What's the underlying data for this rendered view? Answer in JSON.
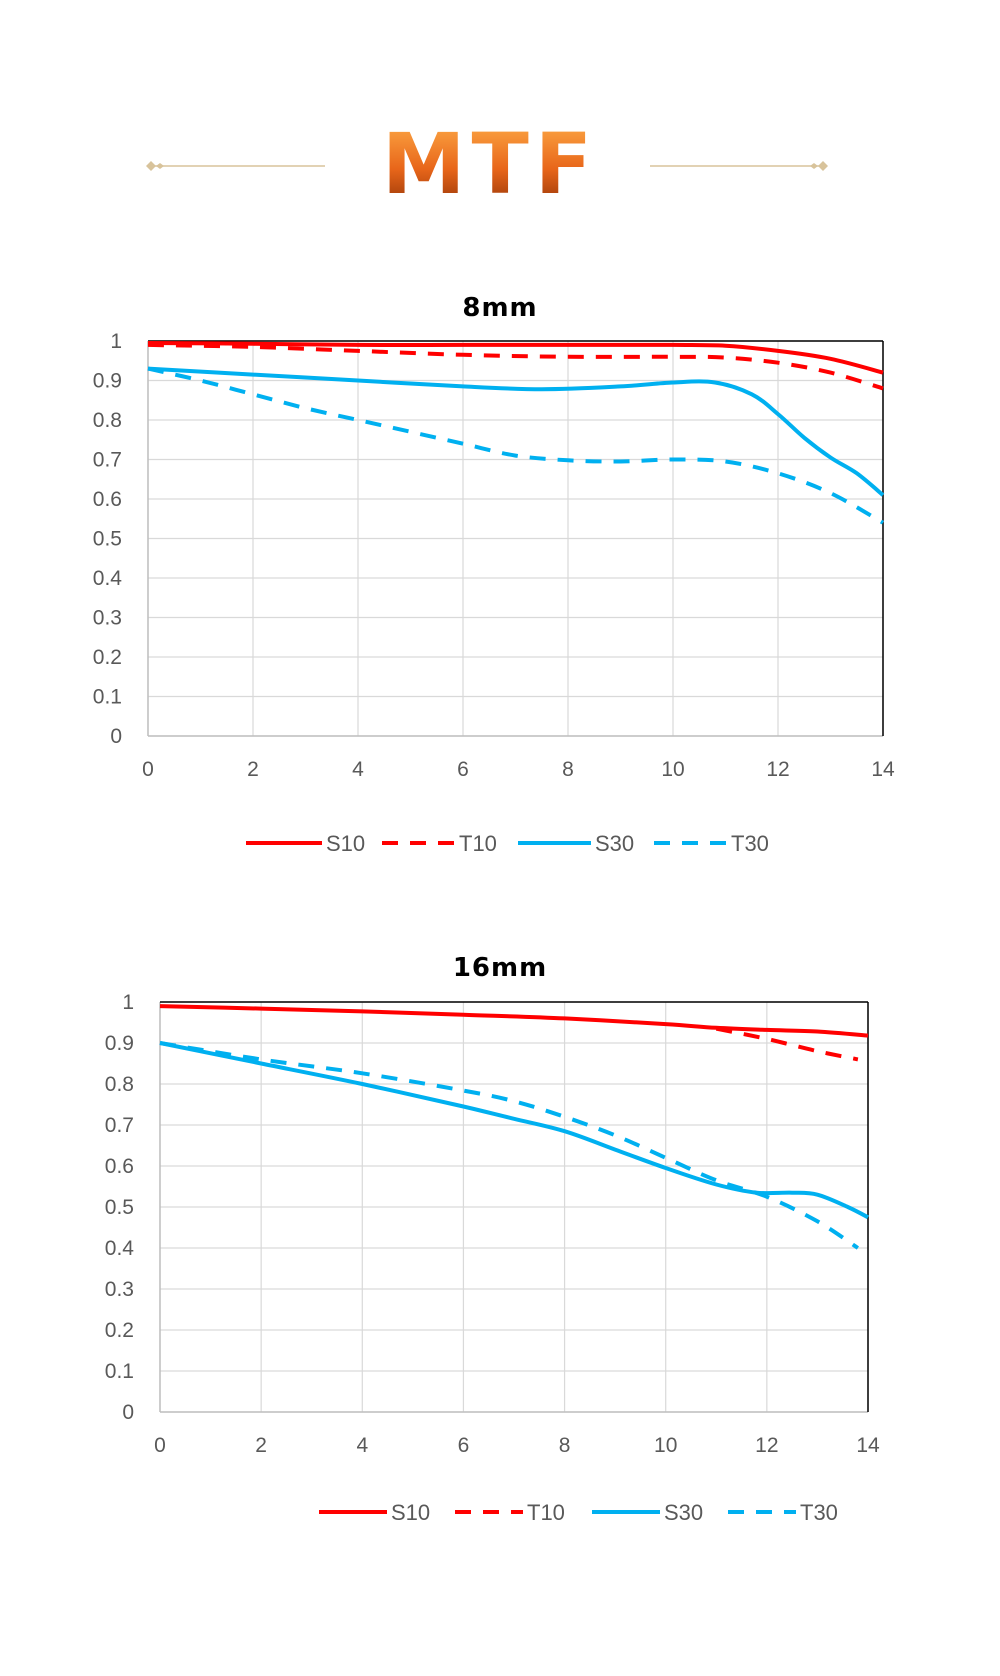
{
  "header": {
    "title": "MTF",
    "title_colors": [
      "#ffb04a",
      "#e8661a",
      "#8a2e04"
    ],
    "ornament_color": "#d8c39b"
  },
  "chart_data": [
    {
      "type": "line",
      "title": "8mm",
      "xlabel": "",
      "ylabel": "",
      "xlim": [
        0,
        14
      ],
      "ylim": [
        0,
        1
      ],
      "x_ticks": [
        "0",
        "2",
        "4",
        "6",
        "8",
        "10",
        "12",
        "14"
      ],
      "y_ticks": [
        "0",
        "0.1",
        "0.2",
        "0.3",
        "0.4",
        "0.5",
        "0.6",
        "0.7",
        "0.8",
        "0.9",
        "1"
      ],
      "grid": true,
      "legend": "bottom",
      "series": [
        {
          "name": "S10",
          "color": "#ff0000",
          "style": "solid",
          "points": [
            [
              0,
              0.995
            ],
            [
              2,
              0.993
            ],
            [
              4,
              0.99
            ],
            [
              6,
              0.99
            ],
            [
              8,
              0.99
            ],
            [
              10,
              0.99
            ],
            [
              11,
              0.988
            ],
            [
              12,
              0.975
            ],
            [
              13,
              0.955
            ],
            [
              14,
              0.92
            ]
          ]
        },
        {
          "name": "T10",
          "color": "#ff0000",
          "style": "dashed",
          "points": [
            [
              0,
              0.99
            ],
            [
              2,
              0.985
            ],
            [
              4,
              0.975
            ],
            [
              6,
              0.965
            ],
            [
              8,
              0.96
            ],
            [
              10,
              0.96
            ],
            [
              11,
              0.958
            ],
            [
              12,
              0.945
            ],
            [
              13,
              0.92
            ],
            [
              14,
              0.88
            ]
          ]
        },
        {
          "name": "S30",
          "color": "#00b0f0",
          "style": "solid",
          "points": [
            [
              0,
              0.93
            ],
            [
              2,
              0.915
            ],
            [
              4,
              0.9
            ],
            [
              6,
              0.885
            ],
            [
              7.5,
              0.878
            ],
            [
              9,
              0.885
            ],
            [
              10,
              0.895
            ],
            [
              10.8,
              0.895
            ],
            [
              11.5,
              0.865
            ],
            [
              12,
              0.815
            ],
            [
              12.5,
              0.755
            ],
            [
              13,
              0.705
            ],
            [
              13.5,
              0.665
            ],
            [
              14,
              0.61
            ]
          ]
        },
        {
          "name": "T30",
          "color": "#00b0f0",
          "style": "dashed",
          "points": [
            [
              0,
              0.93
            ],
            [
              1,
              0.9
            ],
            [
              2,
              0.865
            ],
            [
              3,
              0.83
            ],
            [
              4,
              0.8
            ],
            [
              5,
              0.77
            ],
            [
              6,
              0.74
            ],
            [
              7,
              0.71
            ],
            [
              8,
              0.698
            ],
            [
              9,
              0.695
            ],
            [
              10,
              0.7
            ],
            [
              11,
              0.695
            ],
            [
              12,
              0.665
            ],
            [
              13,
              0.615
            ],
            [
              14,
              0.54
            ]
          ]
        }
      ]
    },
    {
      "type": "line",
      "title": "16mm",
      "xlabel": "",
      "ylabel": "",
      "xlim": [
        0,
        14
      ],
      "ylim": [
        0,
        1
      ],
      "x_ticks": [
        "0",
        "2",
        "4",
        "6",
        "8",
        "10",
        "12",
        "14"
      ],
      "y_ticks": [
        "0",
        "0.1",
        "0.2",
        "0.3",
        "0.4",
        "0.5",
        "0.6",
        "0.7",
        "0.8",
        "0.9",
        "1"
      ],
      "grid": true,
      "legend": "bottom-right",
      "series": [
        {
          "name": "S10",
          "color": "#ff0000",
          "style": "solid",
          "points": [
            [
              0,
              0.99
            ],
            [
              2,
              0.984
            ],
            [
              4,
              0.977
            ],
            [
              6,
              0.969
            ],
            [
              8,
              0.96
            ],
            [
              10,
              0.946
            ],
            [
              11,
              0.937
            ],
            [
              12,
              0.932
            ],
            [
              13,
              0.928
            ],
            [
              14,
              0.918
            ]
          ]
        },
        {
          "name": "T10",
          "color": "#ff0000",
          "style": "dashed",
          "points": [
            [
              11,
              0.935
            ],
            [
              12,
              0.91
            ],
            [
              13,
              0.88
            ],
            [
              13.8,
              0.86
            ]
          ]
        },
        {
          "name": "S30",
          "color": "#00b0f0",
          "style": "solid",
          "points": [
            [
              0,
              0.9
            ],
            [
              2,
              0.85
            ],
            [
              4,
              0.8
            ],
            [
              6,
              0.745
            ],
            [
              7,
              0.715
            ],
            [
              8,
              0.685
            ],
            [
              9,
              0.64
            ],
            [
              10,
              0.595
            ],
            [
              11,
              0.555
            ],
            [
              11.8,
              0.535
            ],
            [
              12.5,
              0.535
            ],
            [
              13,
              0.53
            ],
            [
              13.6,
              0.5
            ],
            [
              14,
              0.475
            ]
          ]
        },
        {
          "name": "T30",
          "color": "#00b0f0",
          "style": "dashed",
          "points": [
            [
              0,
              0.9
            ],
            [
              2,
              0.86
            ],
            [
              4,
              0.826
            ],
            [
              6,
              0.784
            ],
            [
              7,
              0.758
            ],
            [
              8,
              0.72
            ],
            [
              9,
              0.675
            ],
            [
              10,
              0.62
            ],
            [
              11,
              0.565
            ],
            [
              12,
              0.525
            ],
            [
              13,
              0.465
            ],
            [
              13.8,
              0.4
            ]
          ]
        }
      ]
    }
  ]
}
